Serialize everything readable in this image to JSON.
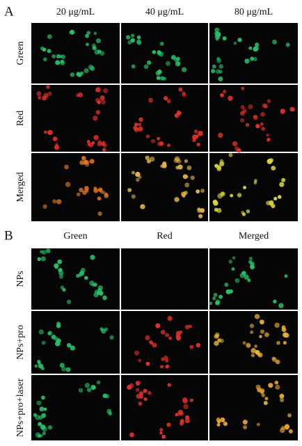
{
  "panel_a": {
    "label": "A",
    "columns": [
      "20 μg/mL",
      "40 μg/mL",
      "80 μg/mL"
    ],
    "rows": [
      "Green",
      "Red",
      "Merged"
    ]
  },
  "panel_b": {
    "label": "B",
    "columns": [
      "Green",
      "Red",
      "Merged"
    ],
    "rows": [
      "NPs",
      "NPs+pro",
      "NPs+pro+laser"
    ]
  }
}
